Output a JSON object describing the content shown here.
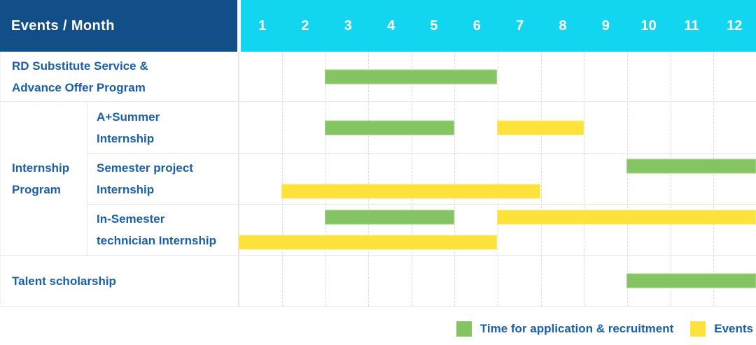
{
  "header": {
    "corner": "Events / Month",
    "months": [
      "1",
      "2",
      "3",
      "4",
      "5",
      "6",
      "7",
      "8",
      "9",
      "10",
      "11",
      "12"
    ]
  },
  "colors": {
    "header_bg": "#124E87",
    "month_header_bg": "#12D6EF",
    "header_text": "#FFFFFF",
    "label_text": "#1A5FA8",
    "green": "#85C463",
    "yellow": "#FDE23C",
    "grid_line": "#E6E6E6",
    "dashed_line": "#D9D9D9"
  },
  "legend": {
    "items": [
      {
        "color_key": "green",
        "label": "Time for application & recruitment"
      },
      {
        "color_key": "yellow",
        "label": "Events"
      }
    ]
  },
  "chart_data": {
    "type": "table",
    "title": "Events / Month",
    "x_axis": {
      "label": "Month",
      "ticks": [
        "1",
        "2",
        "3",
        "4",
        "5",
        "6",
        "7",
        "8",
        "9",
        "10",
        "11",
        "12"
      ],
      "range": [
        1,
        12
      ]
    },
    "series_legend": [
      "Time for application & recruitment",
      "Events"
    ],
    "groups": [
      {
        "label": "Internship Program",
        "label_lines": [
          "Internship",
          "Program"
        ],
        "row_indexes": [
          1,
          2,
          3
        ]
      }
    ],
    "rows": [
      {
        "group": "",
        "label": "RD Substitute Service & Advance Offer Program",
        "label_lines": [
          "RD Substitute Service &",
          "Advance Offer Program"
        ],
        "lines": 1,
        "bars": [
          {
            "series": "Time for application & recruitment",
            "color": "green",
            "start_month": 3,
            "end_month": 6,
            "line": 0
          }
        ]
      },
      {
        "group": "Internship Program",
        "label": "A+Summer Internship",
        "label_lines": [
          "A+Summer",
          "Internship"
        ],
        "lines": 1,
        "bars": [
          {
            "series": "Time for application & recruitment",
            "color": "green",
            "start_month": 3,
            "end_month": 5,
            "line": 0
          },
          {
            "series": "Events",
            "color": "yellow",
            "start_month": 7,
            "end_month": 8,
            "line": 0
          }
        ]
      },
      {
        "group": "Internship Program",
        "label": "Semester project Internship",
        "label_lines": [
          "Semester project",
          "Internship"
        ],
        "lines": 2,
        "bars": [
          {
            "series": "Time for application & recruitment",
            "color": "green",
            "start_month": 10,
            "end_month": 12,
            "line": 0
          },
          {
            "series": "Events",
            "color": "yellow",
            "start_month": 2,
            "end_month": 7,
            "line": 1
          }
        ]
      },
      {
        "group": "Internship Program",
        "label": "In-Semester technician Internship",
        "label_lines": [
          "In-Semester",
          "technician Internship"
        ],
        "lines": 2,
        "bars": [
          {
            "series": "Time for application & recruitment",
            "color": "green",
            "start_month": 3,
            "end_month": 5,
            "line": 0
          },
          {
            "series": "Events",
            "color": "yellow",
            "start_month": 7,
            "end_month": 12,
            "line": 0
          },
          {
            "series": "Events",
            "color": "yellow",
            "start_month": 1,
            "end_month": 6,
            "line": 1
          }
        ]
      },
      {
        "group": "",
        "label": "Talent scholarship",
        "label_lines": [
          "Talent scholarship"
        ],
        "lines": 1,
        "bars": [
          {
            "series": "Time for application & recruitment",
            "color": "green",
            "start_month": 10,
            "end_month": 12,
            "line": 0
          }
        ]
      }
    ]
  }
}
